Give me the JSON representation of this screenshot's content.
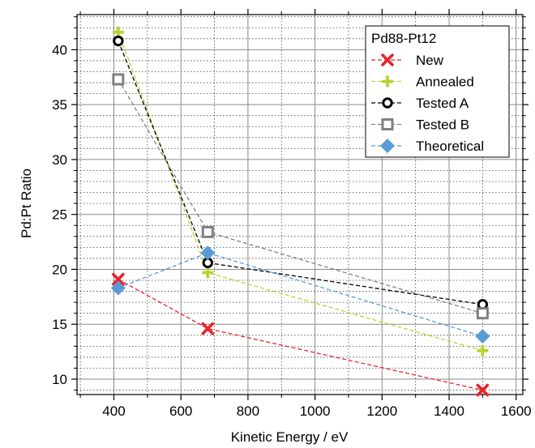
{
  "chart_data": {
    "type": "line",
    "title": "",
    "xlabel": "Kinetic Energy / eV",
    "ylabel": "Pd:Pt Ratio",
    "xlim": [
      290,
      1620
    ],
    "ylim": [
      8.6,
      43.2
    ],
    "x_ticks": [
      400,
      600,
      800,
      1000,
      1200,
      1400,
      1600
    ],
    "x_tick_labels": [
      "400",
      "600",
      "800",
      "1000",
      "1200",
      "1400",
      "1600"
    ],
    "y_ticks": [
      10,
      15,
      20,
      25,
      30,
      35,
      40
    ],
    "y_tick_labels": [
      "10",
      "15",
      "20",
      "25",
      "30",
      "35",
      "40"
    ],
    "grid": true,
    "legend_title": "Pd88-Pt12",
    "legend_position": "top-right",
    "series": [
      {
        "name": "New",
        "marker": "x",
        "color": "#e8242c",
        "x": [
          413,
          680,
          1500
        ],
        "y": [
          19.1,
          14.6,
          9.0
        ]
      },
      {
        "name": "Annealed",
        "marker": "plus",
        "color": "#b8d234",
        "x": [
          413,
          680,
          1500
        ],
        "y": [
          41.6,
          19.7,
          12.6
        ]
      },
      {
        "name": "Tested A",
        "marker": "circle",
        "color": "#000000",
        "x": [
          413,
          680,
          1500
        ],
        "y": [
          40.8,
          20.6,
          16.8
        ]
      },
      {
        "name": "Tested B",
        "marker": "square",
        "color": "#808080",
        "x": [
          413,
          680,
          1500
        ],
        "y": [
          37.3,
          23.4,
          16.0
        ]
      },
      {
        "name": "Theoretical",
        "marker": "diamond",
        "color": "#5b9bd5",
        "x": [
          413,
          680,
          1500
        ],
        "y": [
          18.3,
          21.5,
          13.9
        ]
      }
    ]
  }
}
